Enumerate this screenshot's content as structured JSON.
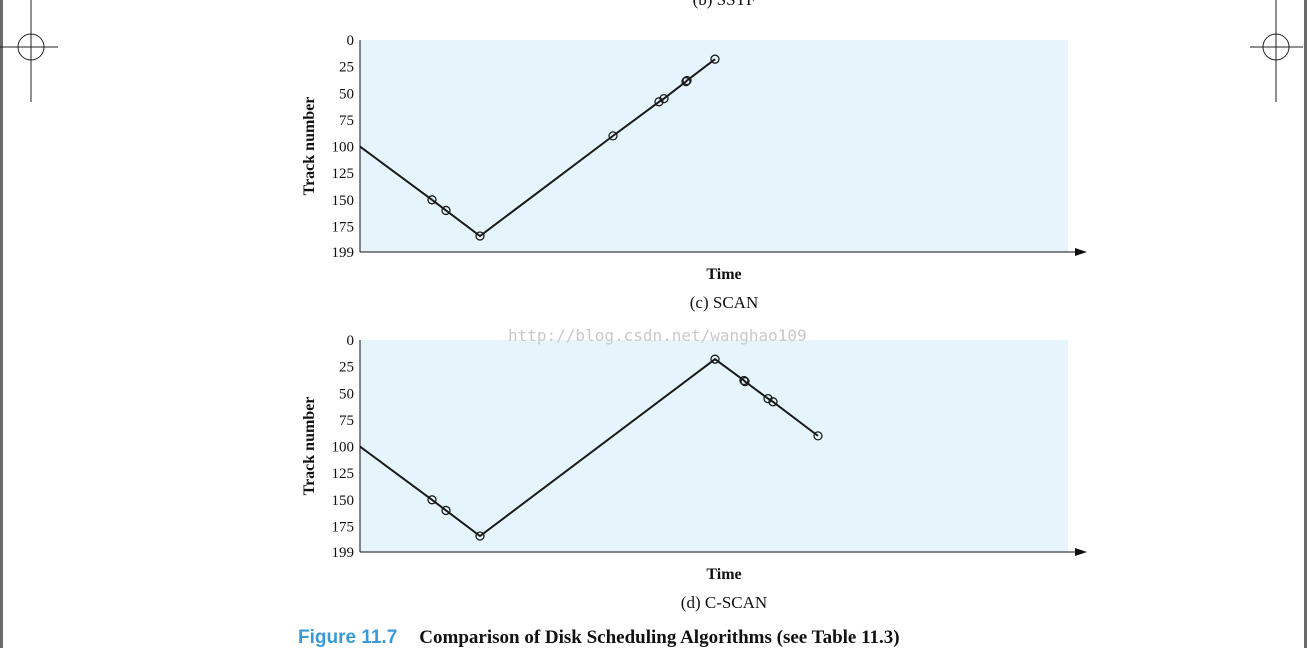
{
  "top_cut_label": "(b) SSTF",
  "watermark": "http://blog.csdn.net/wanghao109",
  "figure": {
    "number": "Figure 11.7",
    "title": "Comparison of Disk Scheduling Algorithms (see Table 11.3)"
  },
  "colors": {
    "plot_bg": "#e6f5fc",
    "line": "#1a1a1a",
    "caption_accent": "#3a9ad9"
  },
  "chart_data": [
    {
      "type": "line",
      "caption": "(c) SCAN",
      "xlabel": "Time",
      "ylabel": "Track number",
      "yticks": [
        "0",
        "25",
        "50",
        "75",
        "100",
        "125",
        "150",
        "175",
        "199"
      ],
      "ylim": [
        0,
        199
      ],
      "y_inverted": true,
      "grid": false,
      "start_track": 100,
      "series": [
        {
          "values": [
            150,
            160,
            184,
            90,
            58,
            55,
            39,
            38,
            18
          ]
        }
      ]
    },
    {
      "type": "line",
      "caption": "(d) C-SCAN",
      "xlabel": "Time",
      "ylabel": "Track number",
      "yticks": [
        "0",
        "25",
        "50",
        "75",
        "100",
        "125",
        "150",
        "175",
        "199"
      ],
      "ylim": [
        0,
        199
      ],
      "y_inverted": true,
      "grid": false,
      "start_track": 100,
      "series": [
        {
          "values": [
            150,
            160,
            184,
            18,
            38,
            39,
            55,
            58,
            90
          ]
        }
      ]
    }
  ]
}
